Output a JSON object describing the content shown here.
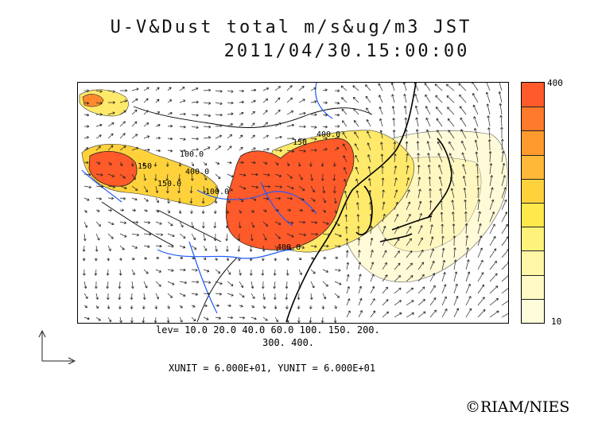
{
  "title": {
    "line1": "U-V&Dust total m/s&ug/m3 JST",
    "line2": "2011/04/30.15:00:00"
  },
  "colorbar": {
    "max_label": "400",
    "min_label": "10",
    "colors": [
      "#ff5a2a",
      "#ff7a2a",
      "#ff9a2e",
      "#ffb838",
      "#ffd23c",
      "#ffe84a",
      "#fff27a",
      "#fff7a6",
      "#fffac4",
      "#fffcda"
    ]
  },
  "contour_labels": [
    "400.0",
    "150",
    "100.0",
    "150",
    "400.0",
    "150.0",
    "100.0",
    "400.0"
  ],
  "levels": {
    "line1": "lev= 10.0 20.0 40.0 60.0 100. 150. 200.",
    "line2": "300. 400."
  },
  "units_text": "XUNIT = 6.000E+01, YUNIT = 6.000E+01",
  "copyright": "©RIAM/NIES",
  "map_colors": {
    "coast": "#000000",
    "river": "#1e5aff",
    "arrow": "#222222"
  }
}
